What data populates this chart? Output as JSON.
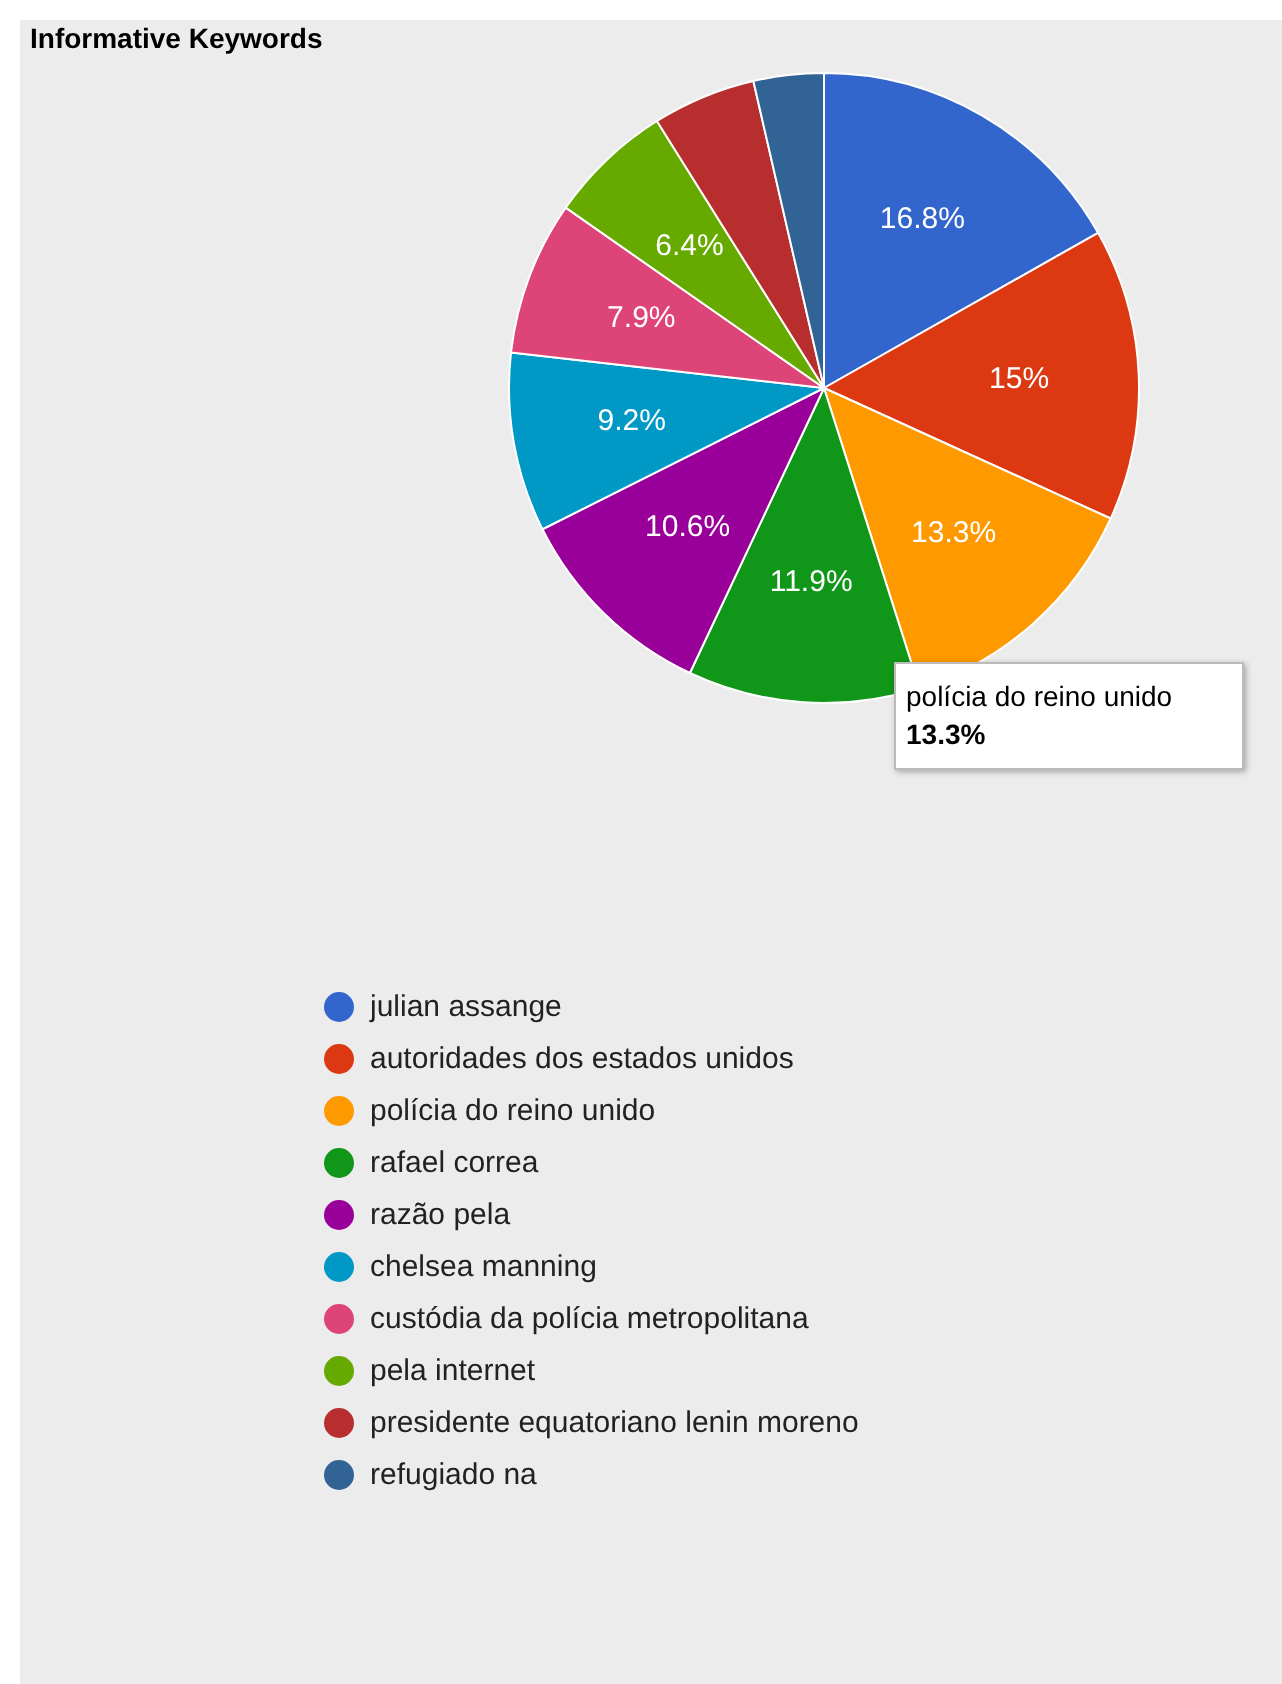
{
  "chart_data": {
    "type": "pie",
    "title": "Informative Keywords",
    "categories": [
      "julian assange",
      "autoridades dos estados unidos",
      "polícia do reino unido",
      "rafael correa",
      "razão pela",
      "chelsea manning",
      "custódia da polícia metropolitana",
      "pela internet",
      "presidente equatoriano lenin moreno",
      "refugiado na"
    ],
    "values": [
      16.8,
      15,
      13.3,
      11.9,
      10.6,
      9.2,
      7.9,
      6.4,
      5.3,
      3.6
    ],
    "value_labels": [
      "16.8%",
      "15%",
      "13.3%",
      "11.9%",
      "10.6%",
      "9.2%",
      "7.9%",
      "6.4%",
      null,
      null
    ],
    "colors": [
      "#3366cc",
      "#dc3912",
      "#ff9900",
      "#109618",
      "#990099",
      "#0099c6",
      "#dd4477",
      "#66aa00",
      "#b82e2e",
      "#316395"
    ],
    "legend": "bottom",
    "annotations": [
      "polícia do reino unido\n13.3%"
    ]
  }
}
